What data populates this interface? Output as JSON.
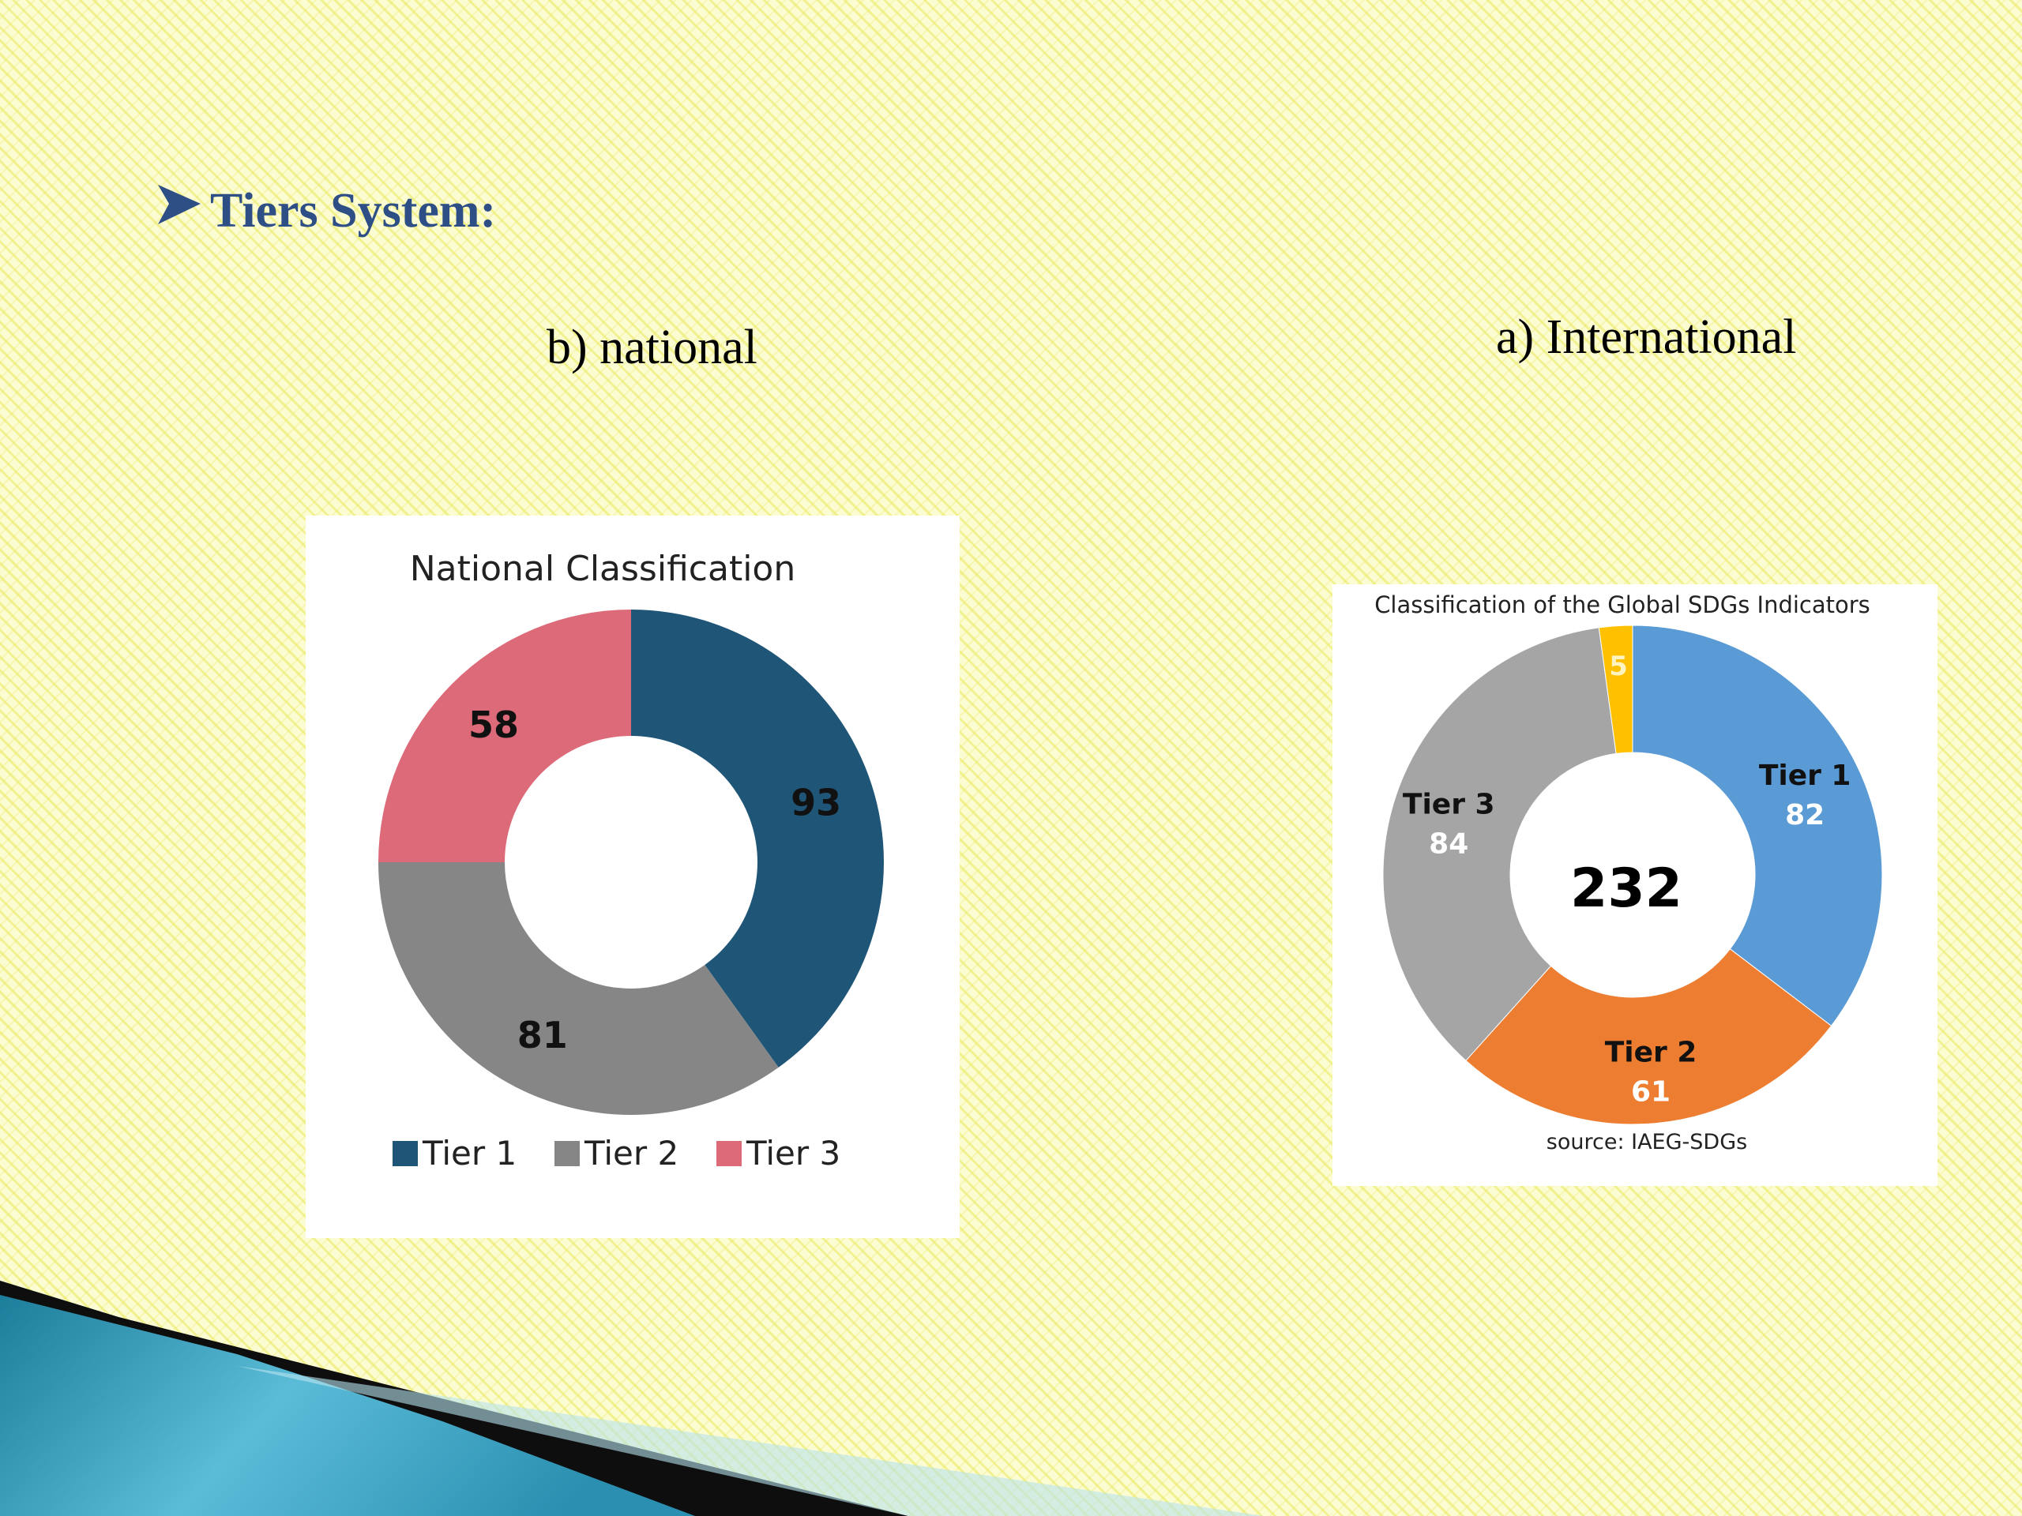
{
  "slide": {
    "title": "Tiers System:",
    "section_b": "b) national",
    "section_a": "a) International"
  },
  "colors": {
    "title": "#2e4f86",
    "national_tier1": "#1f5577",
    "national_tier2": "#868686",
    "national_tier3": "#dc6a78",
    "intl_tier1": "#5b9bd5",
    "intl_tier2": "#ed7d31",
    "intl_tier3": "#a5a5a5",
    "intl_other": "#ffc000"
  },
  "chart_data": [
    {
      "id": "national",
      "type": "pie",
      "variant": "donut",
      "title": "National Classification",
      "categories": [
        "Tier 1",
        "Tier 2",
        "Tier 3"
      ],
      "values": [
        93,
        81,
        58
      ],
      "legend": "bottom",
      "center_label": ""
    },
    {
      "id": "international",
      "type": "pie",
      "variant": "donut",
      "title": "Classification of the Global SDGs Indicators",
      "categories": [
        "Tier 1",
        "Tier 2",
        "Tier 3",
        ""
      ],
      "values": [
        82,
        61,
        84,
        5
      ],
      "legend": "none",
      "center_label": "232",
      "source": "source: IAEG-SDGs"
    }
  ]
}
